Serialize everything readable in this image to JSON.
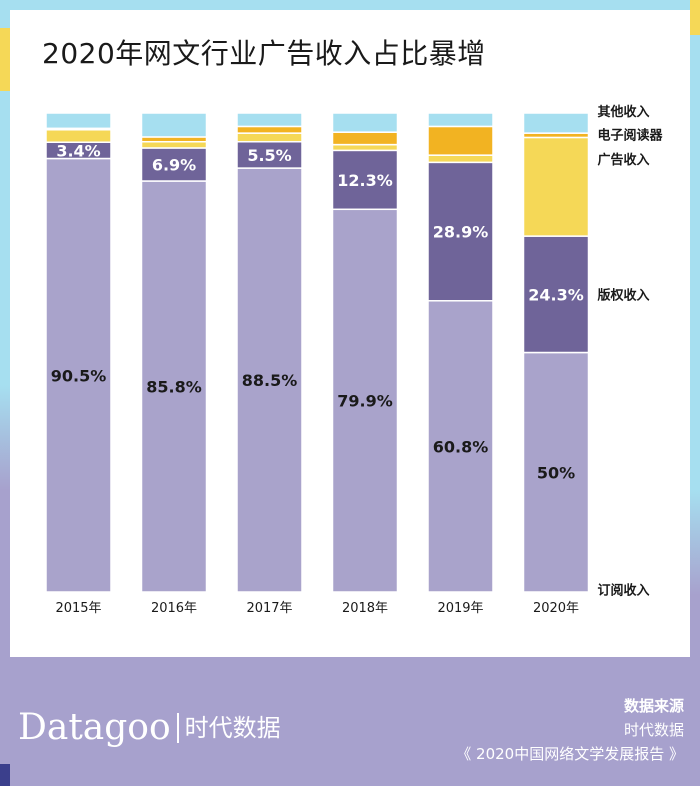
{
  "page": {
    "title": "2020年网文行业广告收入占比暴增"
  },
  "colors": {
    "subscription": "#a9a3cb",
    "copyright": "#6f6499",
    "advertising": "#f5d857",
    "ereader": "#f2b322",
    "other": "#a6dff0",
    "footer": "#a7a1cd"
  },
  "chart_data": {
    "type": "bar",
    "stacked": true,
    "normalized": true,
    "categories": [
      "2015年",
      "2016年",
      "2017年",
      "2018年",
      "2019年",
      "2020年"
    ],
    "ylim": [
      0,
      100
    ],
    "series": [
      {
        "name": "订阅收入",
        "color": "#a9a3cb",
        "values": [
          90.5,
          85.8,
          88.5,
          79.9,
          60.8,
          50
        ]
      },
      {
        "name": "版权收入",
        "color": "#6f6499",
        "values": [
          3.4,
          6.9,
          5.5,
          12.3,
          28.9,
          24.3
        ]
      },
      {
        "name": "广告收入",
        "color": "#f5d857",
        "values": [
          2.6,
          1.3,
          1.8,
          1.2,
          1.5,
          20.6
        ]
      },
      {
        "name": "电子阅读器",
        "color": "#f2b322",
        "values": [
          0.3,
          1.0,
          1.4,
          2.6,
          6.0,
          0.9
        ]
      },
      {
        "name": "其他收入",
        "color": "#a6dff0",
        "values": [
          3.2,
          5.0,
          2.8,
          4.0,
          2.8,
          4.2
        ]
      }
    ],
    "data_labels": [
      [
        "90.5%",
        "85.8%",
        "88.5%",
        "79.9%",
        "60.8%",
        "50%"
      ],
      [
        "3.4%",
        "6.9%",
        "5.5%",
        "12.3%",
        "28.9%",
        "24.3%"
      ]
    ],
    "legend_placement": "right, aligned with 2020 bar segments"
  },
  "footer": {
    "brand_en": "Datagoo",
    "brand_cn": "时代数据",
    "source_title": "数据来源",
    "source_org": "时代数据",
    "source_report": "《 2020中国网络文学发展报告 》"
  }
}
